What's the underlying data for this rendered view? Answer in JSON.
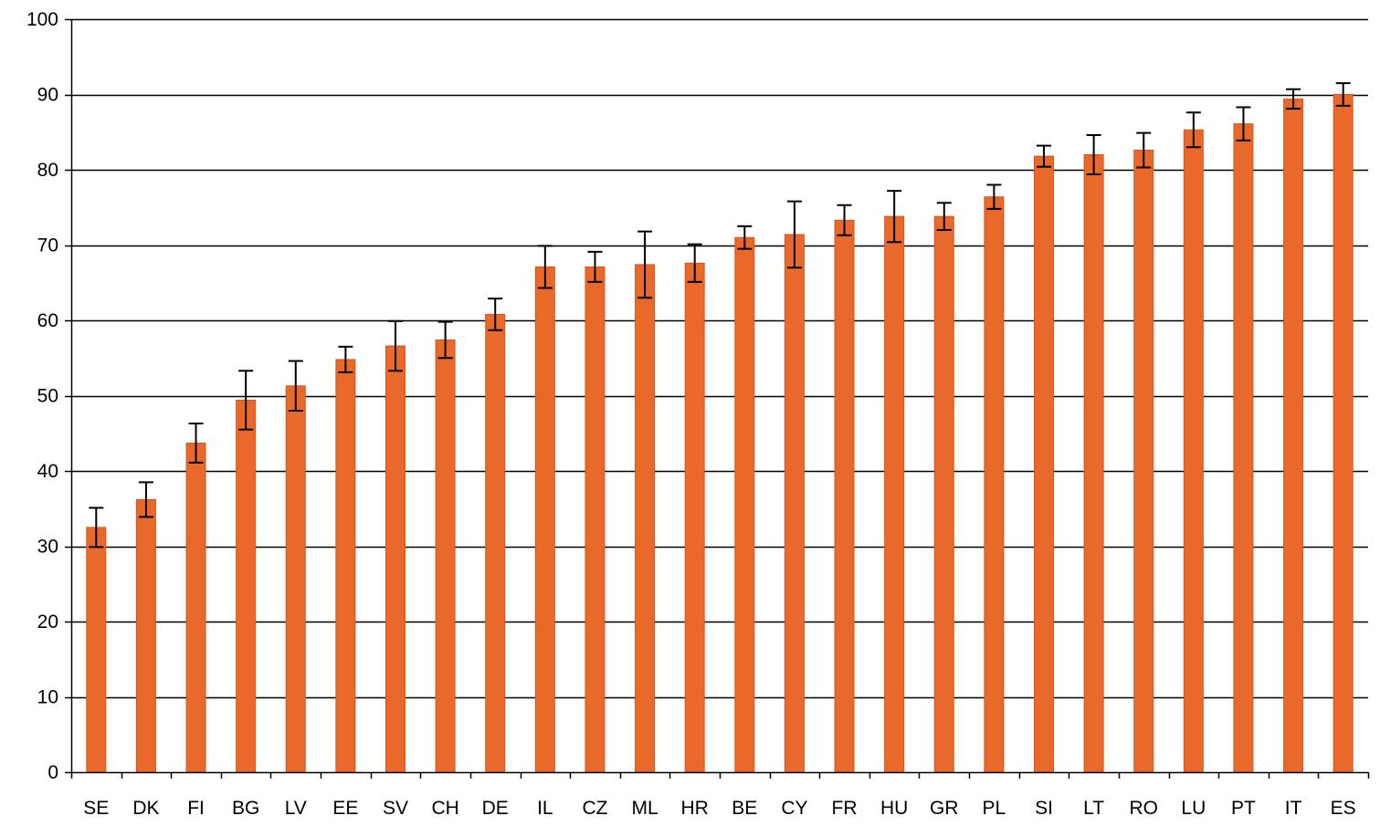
{
  "chart_data": {
    "type": "bar",
    "title": "",
    "xlabel": "",
    "ylabel": "",
    "ylim": [
      0,
      100
    ],
    "yticks": [
      0,
      10,
      20,
      30,
      40,
      50,
      60,
      70,
      80,
      90,
      100
    ],
    "grid": true,
    "legend": "none",
    "colors": {
      "bar_fill": "#E8692A",
      "bar_stroke": "#D9531B",
      "error_bar": "#000000",
      "grid": "#000000",
      "axis": "#000000"
    },
    "categories": [
      "SE",
      "DK",
      "FI",
      "BG",
      "LV",
      "EE",
      "SV",
      "CH",
      "DE",
      "IL",
      "CZ",
      "ML",
      "HR",
      "BE",
      "CY",
      "FR",
      "HU",
      "GR",
      "PL",
      "SI",
      "LT",
      "RO",
      "LU",
      "PT",
      "IT",
      "ES"
    ],
    "series": [
      {
        "values": [
          32.5,
          36.2,
          43.7,
          49.4,
          51.3,
          54.8,
          56.6,
          57.4,
          60.8,
          67.1,
          67.1,
          67.4,
          67.6,
          71.0,
          71.4,
          73.3,
          73.8,
          73.8,
          76.4,
          81.8,
          82.0,
          82.6,
          85.3,
          86.1,
          89.4,
          90.0
        ],
        "error": [
          2.6,
          2.3,
          2.6,
          3.9,
          3.3,
          1.7,
          3.3,
          2.4,
          2.1,
          2.8,
          2.0,
          4.4,
          2.5,
          1.5,
          4.4,
          2.0,
          3.4,
          1.8,
          1.6,
          1.4,
          2.6,
          2.3,
          2.3,
          2.2,
          1.3,
          1.5
        ]
      }
    ]
  }
}
